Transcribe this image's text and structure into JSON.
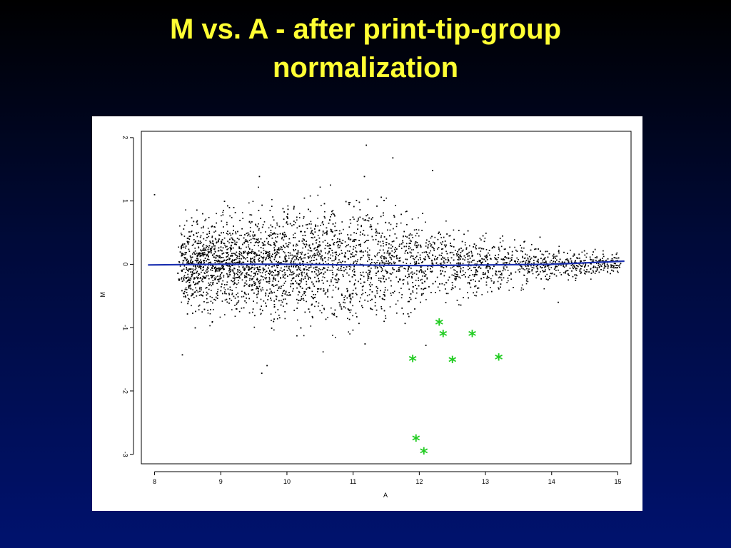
{
  "slide": {
    "title_line1": "M vs. A - after print-tip-group",
    "title_line2": "normalization",
    "title_color": "#ffff33",
    "background_top": "#000000",
    "background_bottom": "#00126e"
  },
  "chart_data": {
    "type": "scatter",
    "title": "",
    "xlabel": "A",
    "ylabel": "M",
    "xlim": [
      7.8,
      15.2
    ],
    "ylim": [
      -3.15,
      2.1
    ],
    "x_ticks": [
      8,
      9,
      10,
      11,
      12,
      13,
      14,
      15
    ],
    "y_ticks": [
      2,
      1,
      0,
      -1,
      -2,
      -3
    ],
    "point_color": "#000000",
    "point_count_approx": 6000,
    "point_cloud_envelope": {
      "a_values": [
        8.2,
        8.5,
        9.0,
        9.5,
        10.0,
        10.5,
        11.0,
        11.5,
        12.0,
        12.5,
        13.0,
        13.5,
        14.0,
        14.5,
        15.0
      ],
      "m_spread_sd": [
        0.28,
        0.32,
        0.35,
        0.38,
        0.42,
        0.44,
        0.44,
        0.38,
        0.3,
        0.24,
        0.2,
        0.16,
        0.12,
        0.1,
        0.08
      ]
    },
    "outliers": [
      {
        "A": 8.0,
        "M": 1.1
      },
      {
        "A": 8.42,
        "M": -1.43
      },
      {
        "A": 9.62,
        "M": -1.72
      },
      {
        "A": 9.7,
        "M": -1.6
      },
      {
        "A": 11.2,
        "M": 1.88
      },
      {
        "A": 11.6,
        "M": 1.68
      },
      {
        "A": 12.2,
        "M": 1.48
      },
      {
        "A": 12.1,
        "M": -1.28
      },
      {
        "A": 14.1,
        "M": -0.6
      }
    ],
    "loess_line": {
      "color": "#1a2fb0",
      "x": [
        7.9,
        9.0,
        10.0,
        11.0,
        12.0,
        13.0,
        14.0,
        15.1
      ],
      "y": [
        -0.01,
        0.0,
        0.0,
        -0.01,
        -0.02,
        -0.01,
        0.0,
        0.05
      ]
    },
    "highlighted": {
      "color": "#22cc22",
      "marker": "*",
      "points": [
        {
          "A": 12.3,
          "M": -0.95
        },
        {
          "A": 12.36,
          "M": -1.13
        },
        {
          "A": 12.8,
          "M": -1.13
        },
        {
          "A": 11.9,
          "M": -1.52
        },
        {
          "A": 12.5,
          "M": -1.54
        },
        {
          "A": 13.2,
          "M": -1.5
        },
        {
          "A": 11.95,
          "M": -2.78
        },
        {
          "A": 12.07,
          "M": -2.98
        }
      ]
    }
  }
}
